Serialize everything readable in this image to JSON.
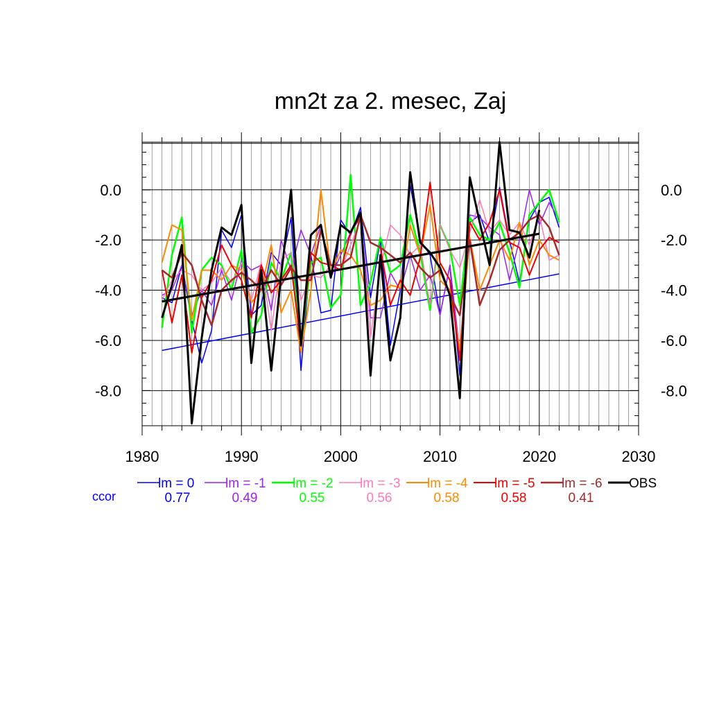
{
  "chart_data": {
    "type": "line",
    "title": "mn2t za 2. mesec, Zaj",
    "xlabel": "",
    "ylabel": "",
    "xlim": [
      1980,
      2030
    ],
    "ylim": [
      -9.4,
      1.9
    ],
    "x_ticks": [
      1980,
      1990,
      2000,
      2010,
      2020,
      2030
    ],
    "y_ticks": [
      0,
      -2,
      -4,
      -6,
      -8
    ],
    "y_tick_labels": [
      "0.0",
      "-2.0",
      "-4.0",
      "-6.0",
      "-8.0"
    ],
    "grid": true,
    "x": [
      1982,
      1983,
      1984,
      1985,
      1986,
      1987,
      1988,
      1989,
      1990,
      1991,
      1992,
      1993,
      1994,
      1995,
      1996,
      1997,
      1998,
      1999,
      2000,
      2001,
      2002,
      2003,
      2004,
      2005,
      2006,
      2007,
      2008,
      2009,
      2010,
      2011,
      2012,
      2013,
      2014,
      2015,
      2016,
      2017,
      2018,
      2019,
      2020,
      2021,
      2022
    ],
    "series": [
      {
        "name": "lm = 0",
        "color": "#0000ff",
        "width": 1.5,
        "values": [
          -4.3,
          -4.5,
          -3.0,
          -5.2,
          -6.9,
          -5.6,
          -1.6,
          -2.3,
          -1.0,
          -5.0,
          -4.6,
          -2.5,
          -3.0,
          -1.1,
          -7.2,
          -2.6,
          -4.9,
          -4.8,
          -1.2,
          -1.8,
          -0.7,
          -4.3,
          -2.0,
          -6.2,
          -4.0,
          0.2,
          -2.0,
          -2.6,
          -5.0,
          -3.0,
          -7.4,
          -1.3,
          -1.0,
          -2.1,
          0.1,
          -2.0,
          -3.7,
          -1.2,
          -0.5,
          -0.3,
          -1.5
        ]
      },
      {
        "name": "lm = -1",
        "color": "#a020f0",
        "width": 1.5,
        "values": [
          -4.2,
          -4.0,
          -3.0,
          -5.0,
          -4.0,
          -4.6,
          -3.2,
          -4.4,
          -2.8,
          -3.2,
          -3.0,
          -4.8,
          -2.0,
          -3.2,
          -1.6,
          -2.6,
          -1.4,
          -3.5,
          -2.6,
          -1.7,
          -1.1,
          -5.1,
          -5.1,
          -3.3,
          -4.0,
          -2.6,
          -4.0,
          -3.4,
          -5.0,
          -3.0,
          -6.5,
          -1.0,
          -1.1,
          -1.5,
          -1.8,
          -3.6,
          -2.0,
          0.0,
          -1.4,
          -0.5,
          -1.2
        ]
      },
      {
        "name": "lm = -2",
        "color": "#00ff00",
        "width": 2.5,
        "values": [
          -5.5,
          -2.6,
          -1.1,
          -5.7,
          -3.2,
          -2.7,
          -3.0,
          -4.0,
          -2.4,
          -5.7,
          -5.0,
          -2.9,
          -3.6,
          -2.5,
          -6.2,
          -2.9,
          -2.7,
          -4.7,
          -4.2,
          0.6,
          -4.6,
          -3.7,
          -1.9,
          -3.3,
          -3.0,
          -1.0,
          -2.5,
          -4.8,
          -1.4,
          -2.3,
          -4.6,
          -1.1,
          -1.8,
          -2.0,
          -1.3,
          -2.5,
          -3.9,
          -1.0,
          -0.5,
          0.0,
          -1.3
        ]
      },
      {
        "name": "lm = -3",
        "color": "#ff77bb",
        "width": 1.5,
        "values": [
          -4.4,
          -3.6,
          -3.2,
          -3.4,
          -4.0,
          -3.7,
          -3.1,
          -3.7,
          -2.9,
          -4.4,
          -2.9,
          -5.6,
          -2.8,
          -2.5,
          -4.4,
          -3.4,
          -3.5,
          -3.0,
          -3.2,
          -2.2,
          -1.2,
          -5.9,
          -3.1,
          -1.4,
          -1.8,
          -2.6,
          -2.2,
          -4.6,
          -1.4,
          -2.4,
          -3.1,
          -1.7,
          -0.4,
          -1.7,
          -1.2,
          -1.8,
          -1.3,
          -2.2,
          -1.0,
          -2.8,
          -2.6
        ]
      },
      {
        "name": "lm = -4",
        "color": "#ff8800",
        "width": 2,
        "values": [
          -2.9,
          -1.4,
          -1.6,
          -5.2,
          -3.2,
          -3.2,
          -3.6,
          -3.0,
          -3.2,
          -4.5,
          -4.0,
          -2.2,
          -4.9,
          -4.0,
          -6.5,
          -4.0,
          0.0,
          -3.3,
          -2.4,
          -2.6,
          -3.2,
          -4.6,
          -4.4,
          -3.8,
          -3.9,
          -1.4,
          -2.6,
          -0.6,
          -3.6,
          -4.0,
          -6.4,
          -1.9,
          -4.0,
          -3.0,
          -2.0,
          -2.8,
          -1.3,
          -3.0,
          -2.0,
          -2.6,
          -2.8
        ]
      },
      {
        "name": "lm = -5",
        "color": "#ee0000",
        "width": 2,
        "values": [
          -3.2,
          -5.3,
          -3.4,
          -6.5,
          -4.3,
          -3.6,
          -2.2,
          -3.0,
          -3.6,
          -5.1,
          -3.0,
          -4.1,
          -3.6,
          -3.0,
          -6.2,
          -2.5,
          -2.9,
          -3.0,
          -3.2,
          -1.7,
          -1.0,
          -2.1,
          -2.3,
          -4.6,
          -3.6,
          -4.2,
          -2.7,
          0.3,
          -2.9,
          -3.6,
          -6.8,
          -1.3,
          -2.0,
          -1.3,
          0.0,
          -2.1,
          -2.3,
          -3.4,
          -2.4,
          -1.9,
          -2.1
        ]
      },
      {
        "name": "lm = -6",
        "color": "#a52a2a",
        "width": 2.5,
        "values": [
          -3.2,
          -3.5,
          -2.5,
          -3.0,
          -4.4,
          -5.4,
          -4.0,
          -3.6,
          -3.3,
          -3.6,
          -4.0,
          -3.2,
          -3.8,
          -3.1,
          -3.6,
          -3.6,
          -1.6,
          -3.0,
          -3.0,
          -2.7,
          -1.0,
          -2.1,
          -2.3,
          -2.6,
          -2.9,
          -2.5,
          -3.1,
          -3.5,
          -3.2,
          -4.2,
          -5.0,
          -2.0,
          -4.6,
          -3.6,
          -2.4,
          -2.0,
          -1.7,
          -1.2,
          -1.0,
          -1.5,
          -2.6
        ]
      },
      {
        "name": "OBS",
        "color": "#000000",
        "width": 3,
        "values": [
          -5.1,
          -3.8,
          -2.2,
          -9.3,
          -5.9,
          -3.2,
          -1.5,
          -1.8,
          -0.6,
          -6.9,
          -3.2,
          -7.2,
          -3.4,
          0.0,
          -6.2,
          -1.8,
          -1.4,
          -3.5,
          -1.4,
          -1.7,
          -0.9,
          -7.4,
          -2.6,
          -6.8,
          -5.1,
          0.7,
          -2.1,
          -2.5,
          -3.1,
          -4.2,
          -8.3,
          0.5,
          -1.3,
          -3.0,
          1.9,
          -1.6,
          -1.7,
          -2.7,
          -0.8,
          null,
          null
        ]
      }
    ],
    "trend_lines": [
      {
        "series": "lm = 0",
        "color": "#0000ff",
        "width": 1.5,
        "x": [
          1982,
          2022
        ],
        "y": [
          -6.4,
          -3.35
        ]
      },
      {
        "series": "OBS",
        "color": "#000000",
        "width": 3,
        "x": [
          1982,
          2020
        ],
        "y": [
          -4.45,
          -1.75
        ]
      }
    ],
    "legend": {
      "placement": "bottom",
      "row_label": "ccor",
      "row_label_color": "#0000ff",
      "entries": [
        {
          "label": "lm = 0",
          "ccor": "0.77",
          "color": "#0000ff",
          "width": 1.5
        },
        {
          "label": "lm = -1",
          "ccor": "0.49",
          "color": "#a020f0",
          "width": 1.5
        },
        {
          "label": "lm = -2",
          "ccor": "0.55",
          "color": "#00ff00",
          "width": 2.5
        },
        {
          "label": "lm = -3",
          "ccor": "0.56",
          "color": "#ff77bb",
          "width": 1.5
        },
        {
          "label": "lm = -4",
          "ccor": "0.58",
          "color": "#ff8800",
          "width": 2
        },
        {
          "label": "lm = -5",
          "ccor": "0.58",
          "color": "#ee0000",
          "width": 2
        },
        {
          "label": "lm = -6",
          "ccor": "0.41",
          "color": "#a52a2a",
          "width": 2.5
        },
        {
          "label": "OBS",
          "ccor": "",
          "color": "#000000",
          "width": 3
        }
      ]
    }
  }
}
